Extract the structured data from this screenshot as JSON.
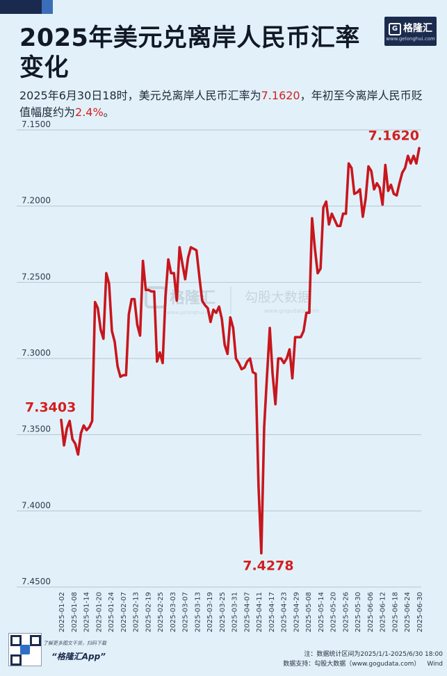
{
  "header": {
    "title": "2025年美元兑离岸人民币汇率变化",
    "subtitle_pre": "2025年6月30日18时，美元兑离岸人民币汇率为",
    "subtitle_rate": "7.1620",
    "subtitle_mid": "，年初至今离岸人民币贬值幅度约为",
    "subtitle_pct": "2.4%",
    "subtitle_end": "。"
  },
  "logo": {
    "icon": "G",
    "name": "格隆汇",
    "url": "www.gelonghui.com"
  },
  "watermark": {
    "left": "格隆汇",
    "left_url": "www.gelonghui.com",
    "right": "勾股大数据",
    "right_url": "www.gogudata.com"
  },
  "footer": {
    "qr_caption": "了解更多图文干货，扫码下载",
    "app_name": "“格隆汇App”",
    "note": "注：数据统计区间为2025/1/1-2025/6/30 18:00",
    "source": "数据支持：勾股大数据（www.gogudata.com）",
    "source2": "Wind"
  },
  "colors": {
    "line": "#c8161d",
    "label": "#d21f1f",
    "grid": "#b6c4ce",
    "background": "#e2f1f9"
  },
  "chart_data": {
    "type": "line",
    "y_reversed": true,
    "ylim": [
      7.15,
      7.45
    ],
    "yticks": [
      "7.1500",
      "7.2000",
      "7.2500",
      "7.3000",
      "7.3500",
      "7.4000",
      "7.4500"
    ],
    "xticks": [
      "2025-01-02",
      "2025-01-08",
      "2025-01-14",
      "2025-01-20",
      "2025-01-24",
      "2025-02-07",
      "2025-02-13",
      "2025-02-19",
      "2025-02-25",
      "2025-03-03",
      "2025-03-07",
      "2025-03-13",
      "2025-03-19",
      "2025-03-25",
      "2025-03-31",
      "2025-04-07",
      "2025-04-11",
      "2025-04-17",
      "2025-04-23",
      "2025-04-29",
      "2025-05-08",
      "2025-05-14",
      "2025-05-20",
      "2025-05-26",
      "2025-05-30",
      "2025-06-06",
      "2025-06-12",
      "2025-06-18",
      "2025-06-24",
      "2025-06-30"
    ],
    "annotations": [
      {
        "text": "7.3403",
        "index": 0
      },
      {
        "text": "7.4278",
        "index": 71
      },
      {
        "text": "7.1620",
        "index": 127
      }
    ],
    "values": [
      7.3403,
      7.357,
      7.346,
      7.341,
      7.353,
      7.356,
      7.363,
      7.349,
      7.344,
      7.347,
      7.345,
      7.341,
      7.263,
      7.267,
      7.281,
      7.287,
      7.244,
      7.251,
      7.282,
      7.289,
      7.305,
      7.312,
      7.311,
      7.311,
      7.271,
      7.261,
      7.261,
      7.278,
      7.285,
      7.236,
      7.255,
      7.255,
      7.256,
      7.256,
      7.302,
      7.296,
      7.303,
      7.26,
      7.235,
      7.244,
      7.244,
      7.262,
      7.227,
      7.238,
      7.248,
      7.234,
      7.227,
      7.228,
      7.229,
      7.246,
      7.262,
      7.265,
      7.267,
      7.276,
      7.268,
      7.27,
      7.266,
      7.274,
      7.291,
      7.297,
      7.273,
      7.28,
      7.3,
      7.303,
      7.307,
      7.306,
      7.302,
      7.3,
      7.309,
      7.31,
      7.384,
      7.4278,
      7.345,
      7.312,
      7.28,
      7.31,
      7.33,
      7.3,
      7.3,
      7.303,
      7.3,
      7.294,
      7.313,
      7.286,
      7.286,
      7.286,
      7.282,
      7.27,
      7.27,
      7.208,
      7.228,
      7.244,
      7.241,
      7.201,
      7.197,
      7.212,
      7.205,
      7.209,
      7.213,
      7.213,
      7.205,
      7.205,
      7.172,
      7.175,
      7.192,
      7.191,
      7.189,
      7.207,
      7.195,
      7.174,
      7.177,
      7.189,
      7.185,
      7.188,
      7.199,
      7.173,
      7.19,
      7.186,
      7.192,
      7.193,
      7.185,
      7.178,
      7.175,
      7.167,
      7.172,
      7.167,
      7.172,
      7.162
    ]
  }
}
